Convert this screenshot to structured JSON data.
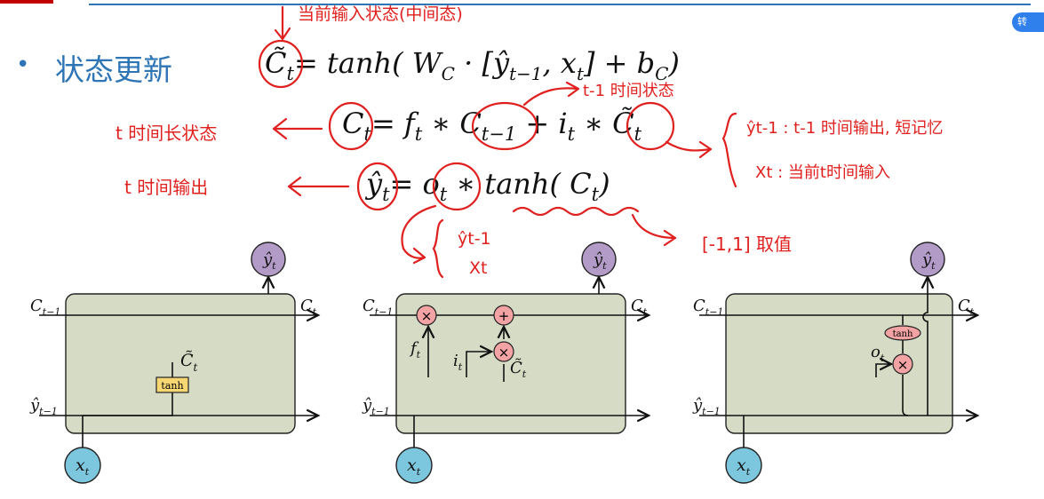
{
  "slide": {
    "bullet": "•",
    "title": "状态更新",
    "badge": "转"
  },
  "equations": {
    "eq1": {
      "lhs": "C̃",
      "lhs_sub": "t",
      "rhs": "= tanh( W",
      "rhs_sub1": "C",
      "rhs2": " · [ŷ",
      "rhs_sub2": "t−1",
      "rhs3": ", x",
      "rhs_sub3": "t",
      "rhs4": "] + b",
      "rhs_sub4": "C",
      "rhs5": ")"
    },
    "eq2": {
      "lhs": "C",
      "lhs_sub": "t",
      "t1": "= f",
      "t1_sub": "t",
      "t2": " ∗ C",
      "t2_sub": "t−1",
      "t3": " + i",
      "t3_sub": "t",
      "t4": " ∗ C̃",
      "t4_sub": "t"
    },
    "eq3": {
      "lhs": "ŷ",
      "lhs_sub": "t",
      "t1": "= o",
      "t1_sub": "t",
      "t2": " ∗ tanh( C",
      "t2_sub": "t",
      "t3": ")"
    }
  },
  "annotations": {
    "candidate_state": "当前输入状态(中间态)",
    "prev_state": "t-1 时间状态",
    "long_state": "t 时间长状态",
    "output_t": "t 时间输出",
    "yhat_desc": "ŷt-1 : t-1 时间输出, 短记忆",
    "x_desc": "Xt : 当前t时间输入",
    "yhat_prev": "ŷt-1",
    "x_t": "Xt",
    "range": "[-1,1] 取值"
  },
  "cells": [
    {
      "c_prev": "C",
      "c_prev_sub": "t−1",
      "c_out": "C",
      "c_out_sub": "t",
      "y_in": "ŷ",
      "y_in_sub": "t−1",
      "y_out": "ŷ",
      "y_out_sub": "t",
      "x": "x",
      "x_sub": "t",
      "gate_label": "tanh",
      "gate_out": "C̃",
      "gate_out_sub": "t"
    },
    {
      "c_prev": "C",
      "c_prev_sub": "t−1",
      "c_out": "C",
      "c_out_sub": "t",
      "y_in": "ŷ",
      "y_in_sub": "t−1",
      "y_out": "ŷ",
      "y_out_sub": "t",
      "x": "x",
      "x_sub": "t",
      "mul": "×",
      "add": "+",
      "f": "f",
      "f_sub": "t",
      "i": "i",
      "i_sub": "t",
      "ctil": "C̃",
      "ctil_sub": "t"
    },
    {
      "c_prev": "C",
      "c_prev_sub": "t−1",
      "c_out": "C",
      "c_out_sub": "t",
      "y_in": "ŷ",
      "y_in_sub": "t−1",
      "y_out": "ŷ",
      "y_out_sub": "t",
      "x": "x",
      "x_sub": "t",
      "tanh": "tanh",
      "o": "o",
      "o_sub": "t",
      "mul": "×"
    }
  ]
}
